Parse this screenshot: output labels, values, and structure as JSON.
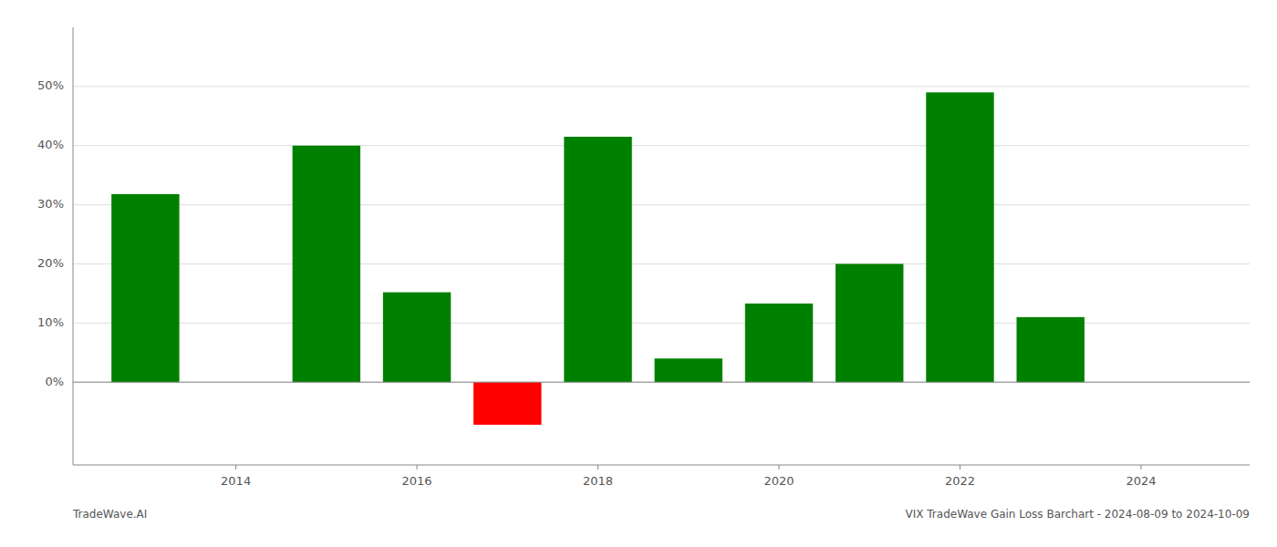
{
  "chart_data": {
    "type": "bar",
    "title": "VIX TradeWave Gain Loss Barchart - 2024-08-09 to 2024-10-09",
    "annotations": [
      "TradeWave.AI"
    ],
    "x": [
      2013,
      2015,
      2016,
      2017,
      2018,
      2019,
      2020,
      2021,
      2022,
      2023
    ],
    "values": [
      0.318,
      0.4,
      0.152,
      -0.072,
      0.415,
      0.04,
      0.133,
      0.2,
      0.49,
      0.11
    ],
    "colors": [
      "#008000",
      "#008000",
      "#008000",
      "#ff0000",
      "#008000",
      "#008000",
      "#008000",
      "#008000",
      "#008000",
      "#008000"
    ],
    "xlim": [
      2012.2,
      2025.2
    ],
    "xticks": [
      2014,
      2016,
      2018,
      2020,
      2022,
      2024
    ],
    "ylim": [
      -0.14,
      0.6
    ],
    "yticks": [
      {
        "value": 0.0,
        "label": "0%"
      },
      {
        "value": 0.1,
        "label": "10%"
      },
      {
        "value": 0.2,
        "label": "20%"
      },
      {
        "value": 0.3,
        "label": "30%"
      },
      {
        "value": 0.4,
        "label": "40%"
      },
      {
        "value": 0.5,
        "label": "50%"
      }
    ],
    "grid": true
  }
}
